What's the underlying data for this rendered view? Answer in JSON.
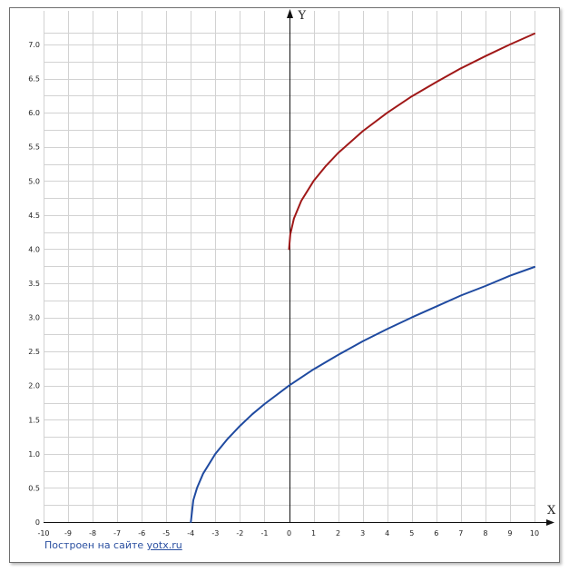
{
  "chart_data": {
    "type": "line",
    "xlabel": "X",
    "ylabel": "Y",
    "xlim": [
      -10,
      10
    ],
    "ylim": [
      0,
      7.2
    ],
    "x_ticks": [
      "-10",
      "-9",
      "-8",
      "-7",
      "-6",
      "-5",
      "-4",
      "-3",
      "-2",
      "-1",
      "0",
      "1",
      "2",
      "3",
      "4",
      "5",
      "6",
      "7",
      "8",
      "9",
      "10"
    ],
    "y_ticks": [
      "0",
      "0.5",
      "1.0",
      "1.5",
      "2.0",
      "2.5",
      "3.0",
      "3.5",
      "4.0",
      "4.5",
      "5.0",
      "5.5",
      "6.0",
      "6.5",
      "7.0"
    ],
    "grid": true,
    "series": [
      {
        "color": "#1f4aa0",
        "x": [
          -4,
          -3.9,
          -3.75,
          -3.5,
          -3,
          -2.5,
          -2,
          -1.5,
          -1,
          0,
          1,
          2,
          3,
          4,
          5,
          6,
          7,
          8,
          9,
          10
        ],
        "y": [
          0,
          0.32,
          0.5,
          0.71,
          1.0,
          1.22,
          1.41,
          1.58,
          1.73,
          2.0,
          2.24,
          2.45,
          2.65,
          2.83,
          3.0,
          3.16,
          3.32,
          3.46,
          3.61,
          3.74
        ]
      },
      {
        "color": "#a01818",
        "x": [
          0,
          0.05,
          0.2,
          0.5,
          1,
          1.5,
          2,
          3,
          4,
          5,
          6,
          7,
          8,
          9,
          10
        ],
        "y": [
          4.0,
          4.22,
          4.45,
          4.71,
          5.0,
          5.22,
          5.41,
          5.73,
          6.0,
          6.24,
          6.45,
          6.65,
          6.83,
          7.0,
          7.16
        ]
      }
    ]
  },
  "footer": {
    "credit_text": "Построен на сайте",
    "credit_link": "yotx.ru"
  }
}
